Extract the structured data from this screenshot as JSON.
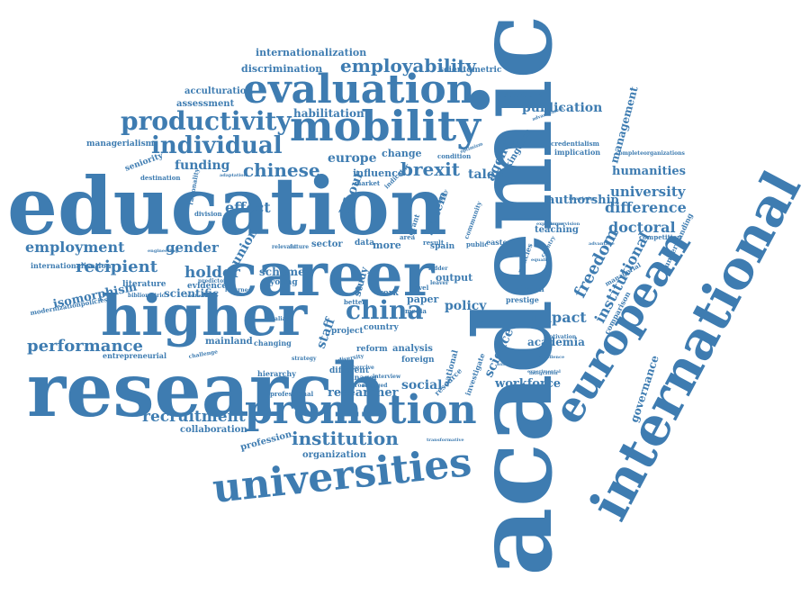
{
  "color": "#3e7cb1",
  "words": [
    {
      "text": "academic"
    },
    {
      "text": "education"
    },
    {
      "text": "research"
    },
    {
      "text": "higher"
    },
    {
      "text": "career"
    },
    {
      "text": "international"
    },
    {
      "text": "european"
    },
    {
      "text": "universities"
    },
    {
      "text": "promotion"
    },
    {
      "text": "mobility"
    },
    {
      "text": "evaluation"
    },
    {
      "text": "productivity"
    },
    {
      "text": "individual"
    },
    {
      "text": "employability"
    },
    {
      "text": "china"
    },
    {
      "text": "institution"
    },
    {
      "text": "performance"
    },
    {
      "text": "recipient"
    },
    {
      "text": "holder"
    },
    {
      "text": "employment"
    },
    {
      "text": "recruitment"
    },
    {
      "text": "chinese"
    },
    {
      "text": "brexit"
    },
    {
      "text": "funding"
    },
    {
      "text": "europe"
    },
    {
      "text": "habilitation"
    },
    {
      "text": "publication"
    },
    {
      "text": "effect"
    },
    {
      "text": "gender"
    },
    {
      "text": "university"
    },
    {
      "text": "difference"
    },
    {
      "text": "doctoral"
    },
    {
      "text": "freedom"
    },
    {
      "text": "institutional"
    },
    {
      "text": "impact"
    },
    {
      "text": "workforce"
    },
    {
      "text": "researcher"
    },
    {
      "text": "social"
    },
    {
      "text": "science"
    },
    {
      "text": "policy"
    },
    {
      "text": "staff"
    },
    {
      "text": "union"
    },
    {
      "text": "scheme"
    },
    {
      "text": "scientific"
    },
    {
      "text": "labour"
    },
    {
      "text": "system"
    },
    {
      "text": "talent"
    },
    {
      "text": "agency"
    },
    {
      "text": "humanities"
    },
    {
      "text": "authorship"
    },
    {
      "text": "management"
    },
    {
      "text": "governance"
    },
    {
      "text": "academia"
    },
    {
      "text": "isomorphism"
    },
    {
      "text": "discrimination"
    },
    {
      "text": "internationalization"
    },
    {
      "text": "acculturation"
    },
    {
      "text": "assessment"
    },
    {
      "text": "managerialism"
    },
    {
      "text": "seniority"
    },
    {
      "text": "change"
    },
    {
      "text": "influence"
    },
    {
      "text": "kingdom"
    },
    {
      "text": "teaching"
    },
    {
      "text": "collaboration"
    },
    {
      "text": "organization"
    },
    {
      "text": "profession"
    },
    {
      "text": "mainland"
    },
    {
      "text": "entrepreneurial"
    },
    {
      "text": "internationalisation"
    },
    {
      "text": "evidence"
    },
    {
      "text": "literature"
    },
    {
      "text": "scientometric"
    },
    {
      "text": "educational"
    },
    {
      "text": "implication"
    },
    {
      "text": "credentialism"
    },
    {
      "text": "completeorganizations"
    },
    {
      "text": "comparison"
    },
    {
      "text": "understanding"
    },
    {
      "text": "competition"
    },
    {
      "text": "paper"
    },
    {
      "text": "output"
    },
    {
      "text": "analysis"
    },
    {
      "text": "foreign"
    },
    {
      "text": "study"
    },
    {
      "text": "more"
    },
    {
      "text": "spain"
    },
    {
      "text": "data"
    },
    {
      "text": "sector"
    },
    {
      "text": "work"
    },
    {
      "text": "reform"
    },
    {
      "text": "project"
    },
    {
      "text": "country"
    },
    {
      "text": "different"
    },
    {
      "text": "national"
    },
    {
      "text": "resource"
    },
    {
      "text": "investigate"
    },
    {
      "text": "manager"
    },
    {
      "text": "mission"
    },
    {
      "text": "prestige"
    },
    {
      "text": "eastern"
    },
    {
      "text": "public"
    },
    {
      "text": "young"
    },
    {
      "text": "division"
    },
    {
      "text": "destination"
    },
    {
      "text": "rationality"
    },
    {
      "text": "changing"
    },
    {
      "text": "hierarchy"
    },
    {
      "text": "professional"
    },
    {
      "text": "modernizationpolicies"
    },
    {
      "text": "challenge"
    },
    {
      "text": "returnee"
    },
    {
      "text": "predictor"
    },
    {
      "text": "condition"
    },
    {
      "text": "indicator"
    },
    {
      "text": "market"
    },
    {
      "text": "community"
    },
    {
      "text": "area"
    },
    {
      "text": "level"
    },
    {
      "text": "media"
    },
    {
      "text": "better"
    },
    {
      "text": "italian"
    },
    {
      "text": "strategy"
    },
    {
      "text": "diversity"
    },
    {
      "text": "approach"
    },
    {
      "text": "engaged"
    },
    {
      "text": "coercive"
    },
    {
      "text": "motivation"
    },
    {
      "text": "excellence"
    },
    {
      "text": "integration"
    },
    {
      "text": "advancement"
    },
    {
      "text": "supervision"
    },
    {
      "text": "knowledge"
    },
    {
      "text": "advantage"
    },
    {
      "text": "managerial"
    },
    {
      "text": "bibliometric"
    },
    {
      "text": "transformative"
    },
    {
      "text": "grant"
    },
    {
      "text": "policies"
    },
    {
      "text": "equality"
    },
    {
      "text": "country"
    },
    {
      "text": "ladder"
    },
    {
      "text": "relevant"
    },
    {
      "text": "future"
    },
    {
      "text": "engineering"
    },
    {
      "text": "resilience"
    },
    {
      "text": "adaptation"
    },
    {
      "text": "experience"
    },
    {
      "text": "authority"
    },
    {
      "text": "experimental"
    },
    {
      "text": "leaver"
    },
    {
      "text": "optimism"
    },
    {
      "text": "result"
    },
    {
      "text": "quality"
    },
    {
      "text": "interview"
    },
    {
      "text": "space"
    }
  ]
}
